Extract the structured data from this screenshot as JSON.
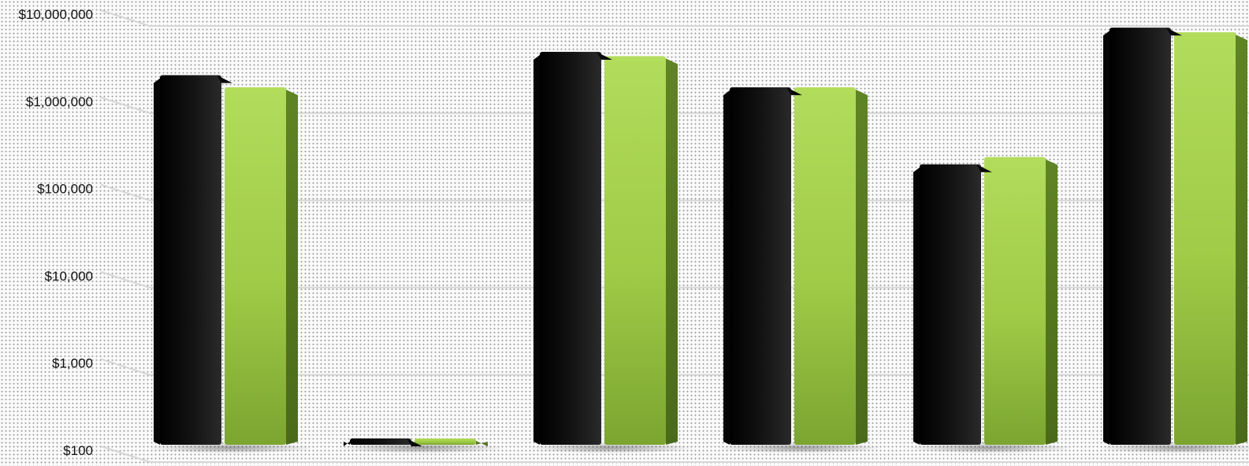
{
  "chart_data": {
    "type": "bar",
    "title": "",
    "xlabel": "",
    "ylabel": "",
    "y_scale": "log",
    "ylim": [
      100,
      10000000
    ],
    "y_ticks": [
      {
        "value": 100,
        "label": "$100"
      },
      {
        "value": 1000,
        "label": "$1,000"
      },
      {
        "value": 10000,
        "label": "$10,000"
      },
      {
        "value": 100000,
        "label": "$100,000"
      },
      {
        "value": 1000000,
        "label": "$1,000,000"
      },
      {
        "value": 10000000,
        "label": "$10,000,000"
      }
    ],
    "categories": [
      "",
      "",
      "",
      "",
      "",
      ""
    ],
    "series": [
      {
        "color": "#111111",
        "values": [
          2000000,
          115,
          3700000,
          1450000,
          190000,
          7000000
        ]
      },
      {
        "color": "#a6d04e",
        "values": [
          1450000,
          115,
          3300000,
          1450000,
          230000,
          6200000
        ]
      }
    ],
    "grid": true,
    "legend": "none"
  }
}
